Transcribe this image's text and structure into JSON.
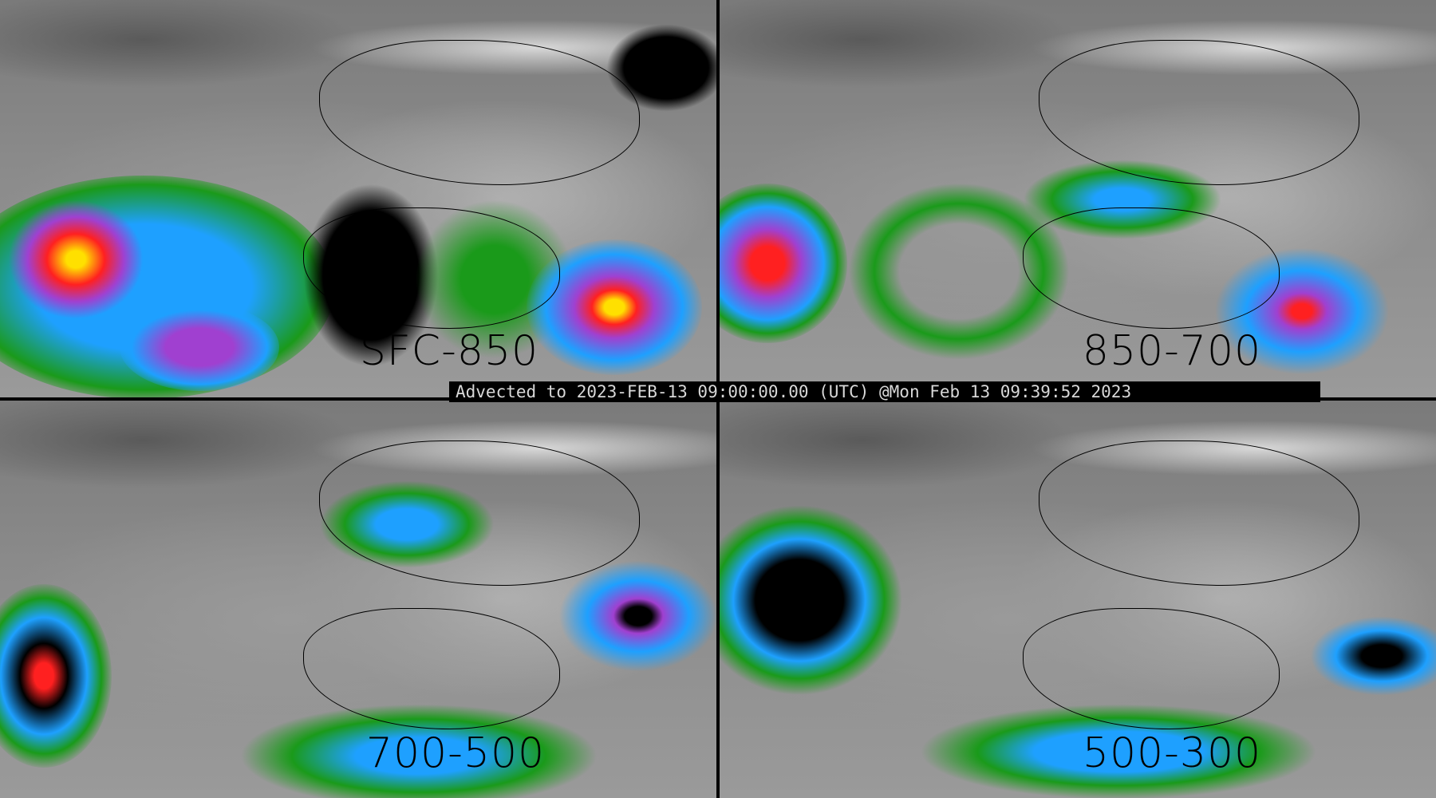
{
  "banner": "Advected to 2023-FEB-13 09:00:00.00 (UTC) @Mon Feb 13 09:39:52 2023",
  "panels": [
    {
      "label": "SFC-850"
    },
    {
      "label": "850-700"
    },
    {
      "label": "700-500"
    },
    {
      "label": "500-300"
    }
  ],
  "colors": {
    "background_field": "#8a8a8a",
    "low": "#1a9a1a",
    "mid": "#1ea0ff",
    "high": "#a040d0",
    "peak": "#ff2020",
    "max": "#ffe000",
    "coastlines": "#000000"
  }
}
